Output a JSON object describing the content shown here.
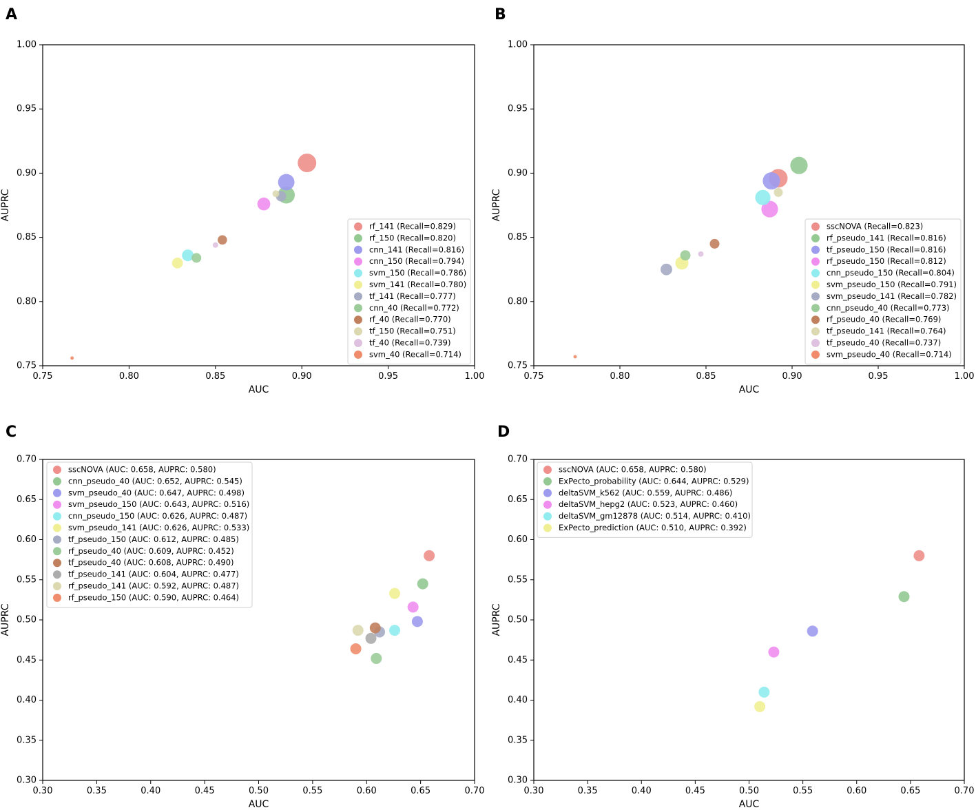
{
  "chart_data": [
    {
      "type": "scatter",
      "panel": "A",
      "xlabel": "AUC",
      "ylabel": "AUPRC",
      "xlim": [
        0.75,
        1.0
      ],
      "ylim": [
        0.75,
        1.0
      ],
      "xticks": [
        "0.75",
        "0.80",
        "0.85",
        "0.90",
        "0.95",
        "1.00"
      ],
      "yticks": [
        "0.75",
        "0.80",
        "0.85",
        "0.90",
        "0.95",
        "1.00"
      ],
      "legend_position": "lower-right",
      "points": [
        {
          "label": "rf_141  (Recall=0.829)",
          "x": 0.903,
          "y": 0.908,
          "color": "#ee8f8b",
          "recall": 0.829
        },
        {
          "label": "rf_150 (Recall=0.820)",
          "x": 0.891,
          "y": 0.883,
          "color": "#95c994",
          "recall": 0.82
        },
        {
          "label": "cnn_141 (Recall=0.816)",
          "x": 0.891,
          "y": 0.893,
          "color": "#9d9bee",
          "recall": 0.816
        },
        {
          "label": "cnn_150 (Recall=0.794)",
          "x": 0.878,
          "y": 0.876,
          "color": "#f08ef0",
          "recall": 0.794
        },
        {
          "label": "svm_150 (Recall=0.786)",
          "x": 0.834,
          "y": 0.836,
          "color": "#90ecee",
          "recall": 0.786
        },
        {
          "label": "svm_141 (Recall=0.780)",
          "x": 0.828,
          "y": 0.83,
          "color": "#f0ef94",
          "recall": 0.78
        },
        {
          "label": "tf_141 (Recall=0.777)",
          "x": 0.888,
          "y": 0.882,
          "color": "#a6abc4",
          "recall": 0.777
        },
        {
          "label": "cnn_40 (Recall=0.772)",
          "x": 0.839,
          "y": 0.834,
          "color": "#9bcc99",
          "recall": 0.772
        },
        {
          "label": "rf_40  (Recall=0.770)",
          "x": 0.854,
          "y": 0.848,
          "color": "#c1805d",
          "recall": 0.77
        },
        {
          "label": "tf_150 (Recall=0.751)",
          "x": 0.885,
          "y": 0.884,
          "color": "#dcd9b0",
          "recall": 0.751
        },
        {
          "label": "tf_40 (Recall=0.739)",
          "x": 0.85,
          "y": 0.844,
          "color": "#dfc2df",
          "recall": 0.739
        },
        {
          "label": "svm_40 (Recall=0.714)",
          "x": 0.767,
          "y": 0.756,
          "color": "#ef8c6c",
          "recall": 0.714
        }
      ]
    },
    {
      "type": "scatter",
      "panel": "B",
      "xlabel": "AUC",
      "ylabel": "AUPRC",
      "xlim": [
        0.75,
        1.0
      ],
      "ylim": [
        0.75,
        1.0
      ],
      "xticks": [
        "0.75",
        "0.80",
        "0.85",
        "0.90",
        "0.95",
        "1.00"
      ],
      "yticks": [
        "0.75",
        "0.80",
        "0.85",
        "0.90",
        "0.95",
        "1.00"
      ],
      "legend_position": "lower-right",
      "points": [
        {
          "label": "sscNOVA (Recall=0.823)",
          "x": 0.892,
          "y": 0.896,
          "color": "#ee8f8b",
          "recall": 0.823
        },
        {
          "label": "rf_pseudo_141 (Recall=0.816)",
          "x": 0.904,
          "y": 0.906,
          "color": "#95c994",
          "recall": 0.816
        },
        {
          "label": "tf_pseudo_150 (Recall=0.816)",
          "x": 0.888,
          "y": 0.894,
          "color": "#9d9bee",
          "recall": 0.816
        },
        {
          "label": "rf_pseudo_150 (Recall=0.812)",
          "x": 0.887,
          "y": 0.872,
          "color": "#f08ef0",
          "recall": 0.812
        },
        {
          "label": "cnn_pseudo_150 (Recall=0.804)",
          "x": 0.883,
          "y": 0.881,
          "color": "#90ecee",
          "recall": 0.804
        },
        {
          "label": "svm_pseudo_150 (Recall=0.791)",
          "x": 0.836,
          "y": 0.83,
          "color": "#f0ef94",
          "recall": 0.791
        },
        {
          "label": "svm_pseudo_141 (Recall=0.782)",
          "x": 0.827,
          "y": 0.825,
          "color": "#a6abc4",
          "recall": 0.782
        },
        {
          "label": "cnn_pseudo_40 (Recall=0.773)",
          "x": 0.838,
          "y": 0.836,
          "color": "#9bcc99",
          "recall": 0.773
        },
        {
          "label": "rf_pseudo_40 (Recall=0.769)",
          "x": 0.855,
          "y": 0.845,
          "color": "#c1805d",
          "recall": 0.769
        },
        {
          "label": "tf_pseudo_141 (Recall=0.764)",
          "x": 0.892,
          "y": 0.885,
          "color": "#dcd9b0",
          "recall": 0.764
        },
        {
          "label": "tf_pseudo_40 (Recall=0.737)",
          "x": 0.847,
          "y": 0.837,
          "color": "#dfc2df",
          "recall": 0.737
        },
        {
          "label": "svm_pseudo_40 (Recall=0.714)",
          "x": 0.774,
          "y": 0.757,
          "color": "#ef8c6c",
          "recall": 0.714
        }
      ]
    },
    {
      "type": "scatter",
      "panel": "C",
      "xlabel": "AUC",
      "ylabel": "AUPRC",
      "xlim": [
        0.3,
        0.7
      ],
      "ylim": [
        0.3,
        0.7
      ],
      "xticks": [
        "0.30",
        "0.35",
        "0.40",
        "0.45",
        "0.50",
        "0.55",
        "0.60",
        "0.65",
        "0.70"
      ],
      "yticks": [
        "0.30",
        "0.35",
        "0.40",
        "0.45",
        "0.50",
        "0.55",
        "0.60",
        "0.65",
        "0.70"
      ],
      "legend_position": "upper-left",
      "points": [
        {
          "label": "sscNOVA (AUC: 0.658, AUPRC: 0.580)",
          "x": 0.658,
          "y": 0.58,
          "color": "#ee8f8b"
        },
        {
          "label": "cnn_pseudo_40 (AUC: 0.652, AUPRC: 0.545)",
          "x": 0.652,
          "y": 0.545,
          "color": "#95c994"
        },
        {
          "label": "svm_pseudo_40 (AUC: 0.647, AUPRC: 0.498)",
          "x": 0.647,
          "y": 0.498,
          "color": "#9d9bee"
        },
        {
          "label": "svm_pseudo_150 (AUC: 0.643, AUPRC: 0.516)",
          "x": 0.643,
          "y": 0.516,
          "color": "#f08ef0"
        },
        {
          "label": "cnn_pseudo_150 (AUC: 0.626, AUPRC: 0.487)",
          "x": 0.626,
          "y": 0.487,
          "color": "#90ecee"
        },
        {
          "label": "svm_pseudo_141 (AUC: 0.626, AUPRC: 0.533)",
          "x": 0.626,
          "y": 0.533,
          "color": "#f0ef94"
        },
        {
          "label": "tf_pseudo_150 (AUC: 0.612, AUPRC: 0.485)",
          "x": 0.612,
          "y": 0.485,
          "color": "#a6abc4"
        },
        {
          "label": "rf_pseudo_40 (AUC: 0.609, AUPRC: 0.452)",
          "x": 0.609,
          "y": 0.452,
          "color": "#9bcc99"
        },
        {
          "label": "tf_pseudo_40 (AUC: 0.608, AUPRC: 0.490)",
          "x": 0.608,
          "y": 0.49,
          "color": "#c1805d"
        },
        {
          "label": "tf_pseudo_141 (AUC: 0.604, AUPRC: 0.477)",
          "x": 0.604,
          "y": 0.477,
          "color": "#acacac"
        },
        {
          "label": "rf_pseudo_141 (AUC: 0.592, AUPRC: 0.487)",
          "x": 0.592,
          "y": 0.487,
          "color": "#dcd9b0"
        },
        {
          "label": "rf_pseudo_150 (AUC: 0.590, AUPRC: 0.464)",
          "x": 0.59,
          "y": 0.464,
          "color": "#ef8c6c"
        }
      ]
    },
    {
      "type": "scatter",
      "panel": "D",
      "xlabel": "AUC",
      "ylabel": "AUPRC",
      "xlim": [
        0.3,
        0.7
      ],
      "ylim": [
        0.3,
        0.7
      ],
      "xticks": [
        "0.30",
        "0.35",
        "0.40",
        "0.45",
        "0.50",
        "0.55",
        "0.60",
        "0.65",
        "0.70"
      ],
      "yticks": [
        "0.30",
        "0.35",
        "0.40",
        "0.45",
        "0.50",
        "0.55",
        "0.60",
        "0.65",
        "0.70"
      ],
      "legend_position": "upper-left",
      "points": [
        {
          "label": "sscNOVA (AUC: 0.658, AUPRC: 0.580)",
          "x": 0.658,
          "y": 0.58,
          "color": "#ee8f8b"
        },
        {
          "label": "ExPecto_probability (AUC: 0.644, AUPRC: 0.529)",
          "x": 0.644,
          "y": 0.529,
          "color": "#95c994"
        },
        {
          "label": "deltaSVM_k562 (AUC: 0.559, AUPRC: 0.486)",
          "x": 0.559,
          "y": 0.486,
          "color": "#9d9bee"
        },
        {
          "label": "deltaSVM_hepg2 (AUC: 0.523, AUPRC: 0.460)",
          "x": 0.523,
          "y": 0.46,
          "color": "#f08ef0"
        },
        {
          "label": "deltaSVM_gm12878 (AUC: 0.514, AUPRC: 0.410)",
          "x": 0.514,
          "y": 0.41,
          "color": "#90ecee"
        },
        {
          "label": "ExPecto_prediction (AUC: 0.510, AUPRC: 0.392)",
          "x": 0.51,
          "y": 0.392,
          "color": "#f0ef94"
        }
      ]
    }
  ]
}
